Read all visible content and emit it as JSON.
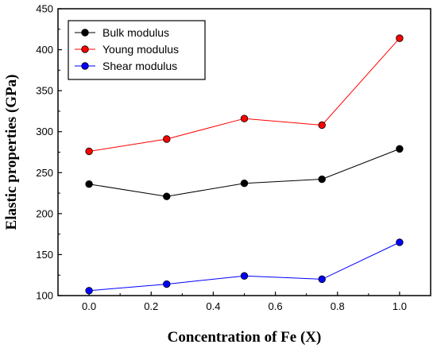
{
  "chart_data": {
    "type": "line",
    "title": "",
    "xlabel": "Concentration of Fe (X)",
    "ylabel": "Elastic properties (GPa)",
    "xlim": [
      -0.1,
      1.1
    ],
    "ylim": [
      100,
      450
    ],
    "xticks": [
      "0.0",
      "0.2",
      "0.4",
      "0.6",
      "0.8",
      "1.0"
    ],
    "xtick_values": [
      0.0,
      0.2,
      0.4,
      0.6,
      0.8,
      1.0
    ],
    "yticks": [
      "100",
      "150",
      "200",
      "250",
      "300",
      "350",
      "400",
      "450"
    ],
    "ytick_values": [
      100,
      150,
      200,
      250,
      300,
      350,
      400,
      450
    ],
    "grid": false,
    "legend_position": "top-left",
    "x": [
      0.0,
      0.25,
      0.5,
      0.75,
      1.0
    ],
    "series": [
      {
        "name": "Bulk modulus",
        "color": "#000000",
        "values": [
          236,
          221,
          237,
          242,
          279
        ]
      },
      {
        "name": "Young modulus",
        "color": "#ff0000",
        "values": [
          276,
          291,
          316,
          308,
          414
        ]
      },
      {
        "name": "Shear modulus",
        "color": "#0000ff",
        "values": [
          106,
          114,
          124,
          120,
          165
        ]
      }
    ]
  }
}
